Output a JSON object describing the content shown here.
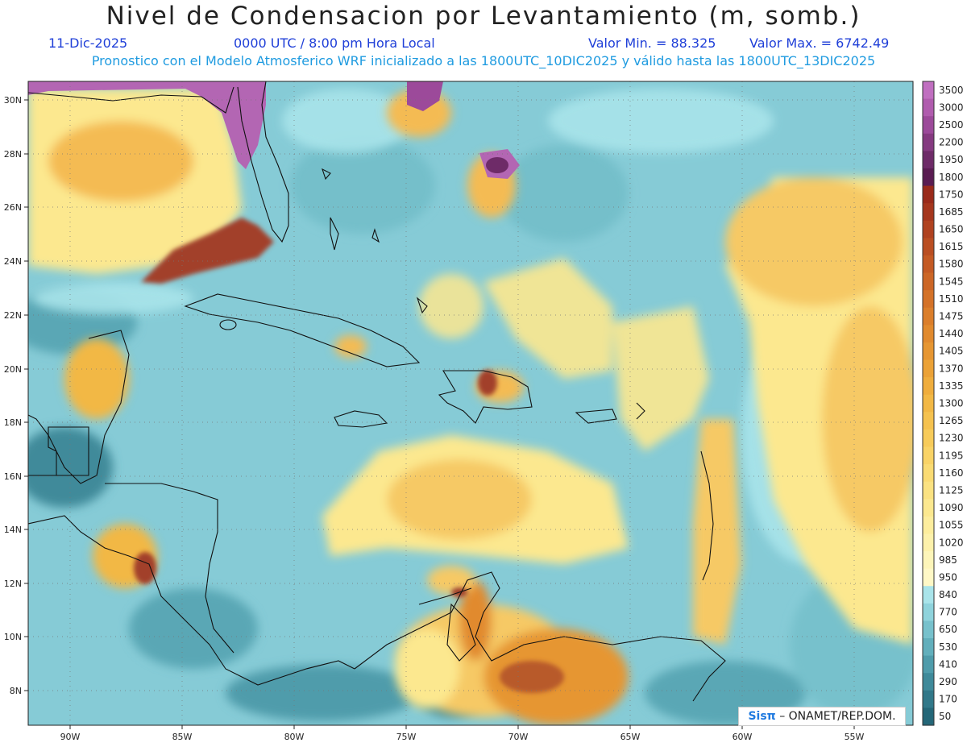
{
  "header": {
    "title": "Nivel de Condensacion por Levantamiento (m, somb.)",
    "date": "11-Dic-2025",
    "time": "0000 UTC / 8:00 pm Hora Local",
    "min": "Valor Min. = 88.325",
    "max": "Valor Max. = 6742.49",
    "info": "Pronostico con el Modelo Atmosferico WRF inicializado a las 1800UTC_10DIC2025 y válido hasta las  1800UTC_13DIC2025"
  },
  "axes": {
    "lat_labels": [
      "30N",
      "28N",
      "26N",
      "24N",
      "22N",
      "20N",
      "18N",
      "16N",
      "14N",
      "12N",
      "10N",
      "8N"
    ],
    "lon_labels": [
      "90W",
      "85W",
      "80W",
      "75W",
      "70W",
      "65W",
      "60W",
      "55W"
    ]
  },
  "legend": {
    "levels": [
      "3500",
      "3000",
      "2500",
      "2200",
      "1950",
      "1800",
      "1750",
      "1685",
      "1650",
      "1615",
      "1580",
      "1545",
      "1510",
      "1475",
      "1440",
      "1405",
      "1370",
      "1335",
      "1300",
      "1265",
      "1230",
      "1195",
      "1160",
      "1125",
      "1090",
      "1055",
      "1020",
      "985",
      "950",
      "840",
      "770",
      "650",
      "530",
      "410",
      "290",
      "170",
      "50"
    ],
    "colors": [
      "#c06fc0",
      "#b05cae",
      "#9c4a9a",
      "#853a80",
      "#6e2b68",
      "#5a1c52",
      "#9a2a1a",
      "#a5361d",
      "#b04220",
      "#ba4e22",
      "#c45a24",
      "#cc6626",
      "#d47228",
      "#db7e2b",
      "#e18a2e",
      "#e69632",
      "#eba237",
      "#efad3d",
      "#f2b845",
      "#f5c24f",
      "#f7cb5a",
      "#f9d366",
      "#fadb73",
      "#fbe281",
      "#fce88f",
      "#fded9d",
      "#fdf1ab",
      "#fdf5b9",
      "#fff8c6",
      "#a9e4ea",
      "#8fd3dc",
      "#77c1cc",
      "#62afbc",
      "#4f9cab",
      "#3f8a9a",
      "#317889",
      "#246778"
    ]
  },
  "credit": {
    "brand": "Sisπ",
    "text": "– ONAMET/REP.DOM."
  },
  "palette": {
    "water": "#86cbd6",
    "dry_high": "#f6c965",
    "very_high": "#a23f2a",
    "extreme": "#b366b3"
  }
}
